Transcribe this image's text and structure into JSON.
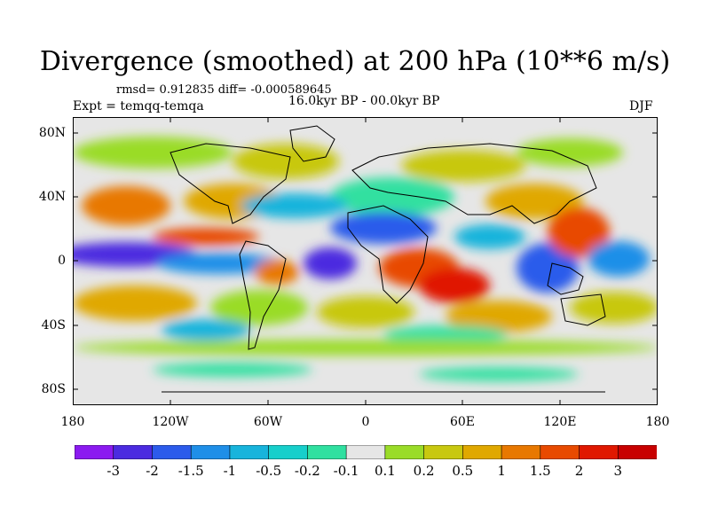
{
  "title": "Divergence (smoothed) at 200 hPa (10**6 m/s)",
  "stats_line": "rmsd= 0.912835 diff= -0.000589645",
  "experiment": "Expt = temqq-temqa",
  "period": "16.0kyr BP - 00.0kyr BP",
  "season": "DJF",
  "map": {
    "lat_labels": [
      "80N",
      "40N",
      "0",
      "40S",
      "80S"
    ],
    "lon_labels": [
      "180",
      "120W",
      "60W",
      "0",
      "60E",
      "120E",
      "180"
    ]
  },
  "colorbar": {
    "labels": [
      "-3",
      "-2",
      "-1.5",
      "-1",
      "-0.5",
      "-0.2",
      "-0.1",
      "0.1",
      "0.2",
      "0.5",
      "1",
      "1.5",
      "2",
      "3"
    ],
    "colors": [
      "#8B1AF0",
      "#4B2BE0",
      "#2C5BEB",
      "#1F8FE8",
      "#18B4DC",
      "#17CFCB",
      "#30E0A0",
      "#E6E6E6",
      "#9ADC28",
      "#C8C810",
      "#E0A800",
      "#E87800",
      "#E84A00",
      "#E01800",
      "#C80000"
    ]
  }
}
